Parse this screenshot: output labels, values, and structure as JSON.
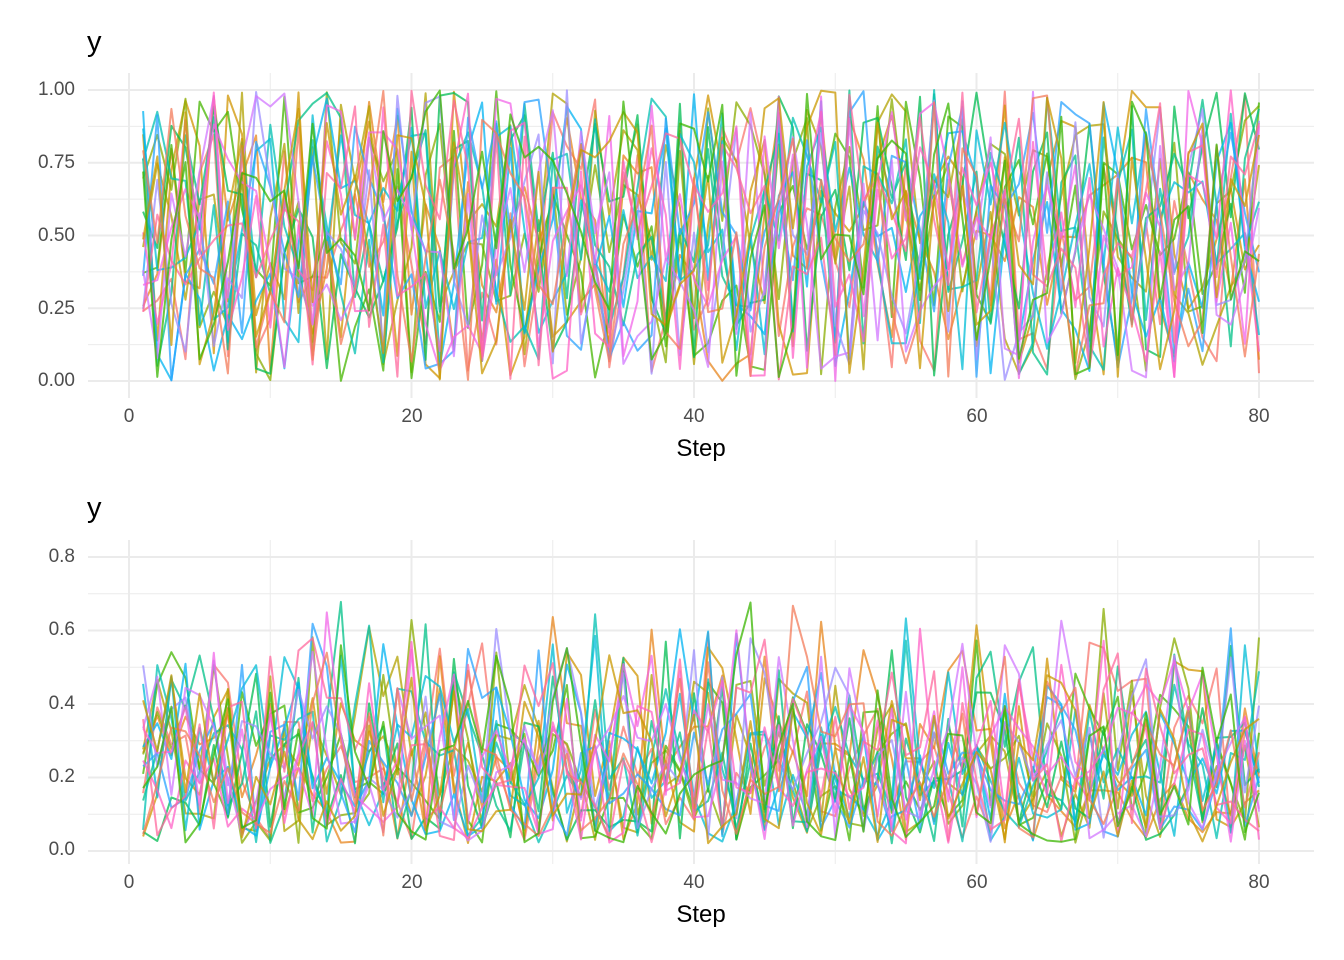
{
  "chart_data": [
    {
      "type": "line",
      "title": "",
      "ylabel": "y",
      "xlabel": "Step",
      "xlim": [
        -1.5,
        82.5
      ],
      "ylim": [
        -0.05,
        1.05
      ],
      "xticks": [
        0,
        20,
        40,
        60,
        80
      ],
      "xtick_labels": [
        "0",
        "20",
        "40",
        "60",
        "80"
      ],
      "yticks": [
        0.0,
        0.25,
        0.5,
        0.75,
        1.0
      ],
      "ytick_labels": [
        "0.00",
        "0.25",
        "0.50",
        "0.75",
        "1.00"
      ],
      "grid": true,
      "legend": "none",
      "x_range": [
        1,
        80
      ],
      "n_series_estimate": 20,
      "value_distribution": "uniform approx 0 to 1, noisy per step",
      "seed": 11
    },
    {
      "type": "line",
      "title": "",
      "ylabel": "y",
      "xlabel": "Step",
      "xlim": [
        -1.5,
        82.5
      ],
      "ylim": [
        -0.03,
        0.86
      ],
      "xticks": [
        0,
        20,
        40,
        60,
        80
      ],
      "xtick_labels": [
        "0",
        "20",
        "40",
        "60",
        "80"
      ],
      "yticks": [
        0.0,
        0.2,
        0.4,
        0.6,
        0.8
      ],
      "ytick_labels": [
        "0.0",
        "0.2",
        "0.4",
        "0.6",
        "0.8"
      ],
      "grid": true,
      "legend": "none",
      "x_range": [
        1,
        80
      ],
      "n_series_estimate": 20,
      "value_distribution": "right-skewed, mostly 0.05 to 0.5, peaks up to 0.8",
      "seed": 29
    }
  ],
  "colors": [
    "#F8766D",
    "#E7851E",
    "#D09400",
    "#B2A100",
    "#89AC00",
    "#45B500",
    "#00BC51",
    "#00C087",
    "#00C0B2",
    "#00BCD6",
    "#00B3F2",
    "#29A3FF",
    "#9C8DFF",
    "#D277FF",
    "#F166E8",
    "#FF61C7",
    "#FF689E",
    "#F37B59",
    "#C99800",
    "#39B600"
  ],
  "plots": {
    "top": {
      "ylabel": "y",
      "xlabel": "Step"
    },
    "bottom": {
      "ylabel": "y",
      "xlabel": "Step"
    }
  }
}
